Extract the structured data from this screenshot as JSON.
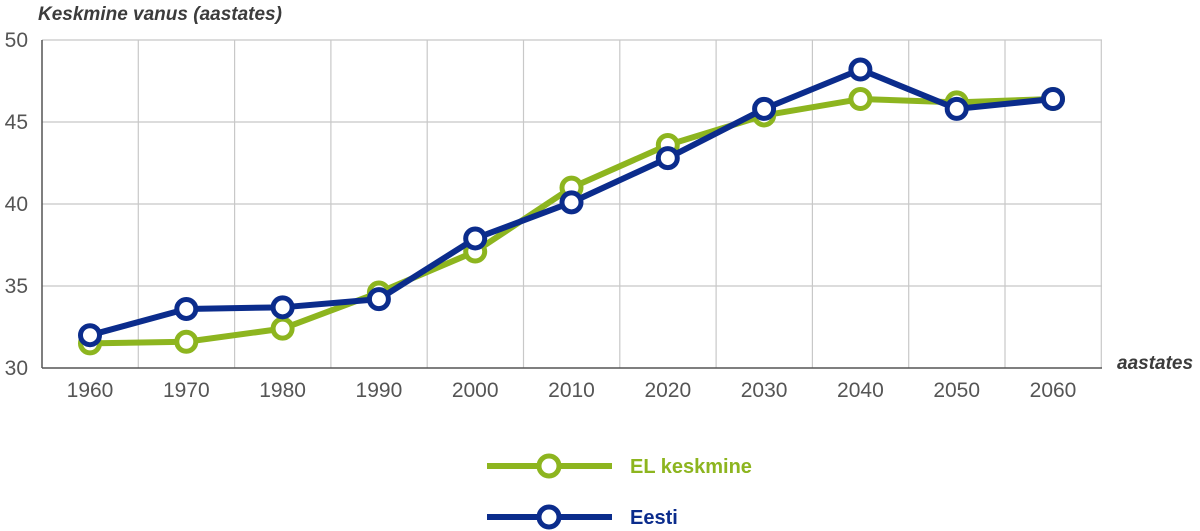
{
  "chart_data": {
    "type": "line",
    "ylabel": "Keskmine vanus (aastates)",
    "xlabel": "aastates",
    "x": [
      "1960",
      "1970",
      "1980",
      "1990",
      "2000",
      "2010",
      "2020",
      "2030",
      "2040",
      "2050",
      "2060"
    ],
    "ylim": [
      30,
      50
    ],
    "yticks": [
      "30",
      "35",
      "40",
      "45",
      "50"
    ],
    "grid": true,
    "legend_position": "bottom-center",
    "series": [
      {
        "name": "EL keskmine",
        "color": "#8db51f",
        "values": [
          31.5,
          31.6,
          32.4,
          34.6,
          37.1,
          41.0,
          43.6,
          45.4,
          46.4,
          46.2,
          46.4
        ]
      },
      {
        "name": "Eesti",
        "color": "#0b2c8c",
        "values": [
          32.0,
          33.6,
          33.7,
          34.2,
          37.9,
          40.1,
          42.8,
          45.8,
          48.2,
          45.8,
          46.4
        ]
      }
    ]
  }
}
